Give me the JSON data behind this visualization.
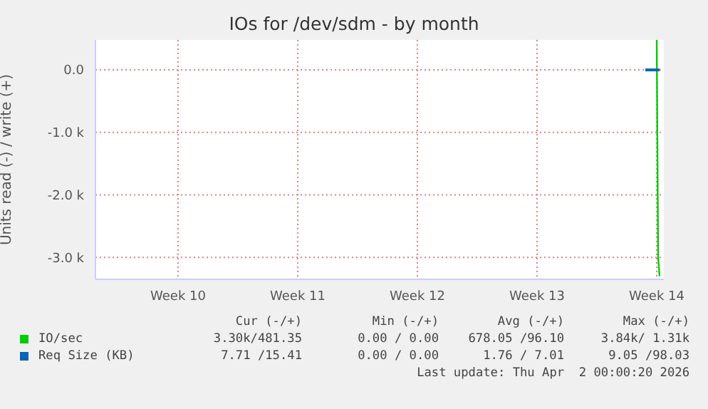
{
  "chart_data": {
    "type": "line",
    "title": "IOs for /dev/sdm - by month",
    "ylabel": "Units read (-) / write (+)",
    "xlim": [
      "2026-02-28T16:00",
      "2026-04-02T22:00"
    ],
    "xticks": [
      {
        "value": "2026-03-05T12:00",
        "label": "Week 10"
      },
      {
        "value": "2026-03-12T12:00",
        "label": "Week 11"
      },
      {
        "value": "2026-03-19T12:00",
        "label": "Week 12"
      },
      {
        "value": "2026-03-26T12:00",
        "label": "Week 13"
      },
      {
        "value": "2026-04-02T12:00",
        "label": "Week 14"
      }
    ],
    "ylim": [
      -3350,
      480
    ],
    "yticks": [
      {
        "value": -3000,
        "label": "-3.0 k"
      },
      {
        "value": -2000,
        "label": "-2.0 k"
      },
      {
        "value": -1000,
        "label": "-1.0 k"
      },
      {
        "value": 0,
        "label": "0.0"
      }
    ],
    "grid": true,
    "legend": "bottom",
    "marker": "none",
    "line_style": "solid",
    "series": [
      {
        "name": "IO/sec",
        "color": "#00cc00",
        "x": [
          "2026-04-02T12:00",
          "2026-04-02T14:00",
          "2026-04-02T16:00"
        ],
        "values": [
          480,
          -3000,
          -3300
        ]
      },
      {
        "name": "Req Size (KB)",
        "color": "#0066b3",
        "x": [
          "2026-04-01T20:00",
          "2026-04-02T16:00"
        ],
        "values": [
          0,
          0
        ]
      }
    ],
    "annotations": [
      "Cur (-/+)",
      "Min (-/+)",
      "Avg (-/+)",
      "Max (-/+)",
      "3.30k/481.35",
      "0.00 / 0.00",
      "678.05 /96.10",
      "3.84k/ 1.31k",
      "7.71 /15.41",
      "0.00 / 0.00",
      "1.76 / 7.01",
      "9.05 /98.03",
      "Last update: Thu Apr  2 00:00:20 2026"
    ]
  }
}
